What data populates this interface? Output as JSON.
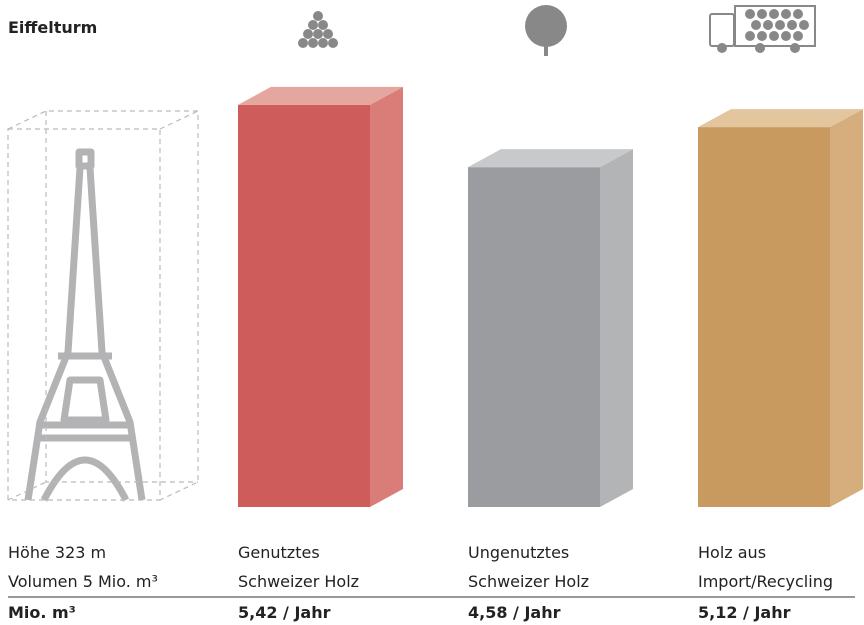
{
  "chart_data": {
    "type": "bar3d",
    "title": "Eiffelturm",
    "reference": {
      "lines": [
        "Höhe 323 m",
        "Volumen 5 Mio. m³"
      ],
      "value": 5,
      "unit": "Mio. m³"
    },
    "categories": [
      [
        "Genutztes",
        "Schweizer Holz"
      ],
      [
        "Ungenutztes",
        "Schweizer Holz"
      ],
      [
        "Holz aus",
        "Import/Recycling"
      ]
    ],
    "values": [
      5.42,
      4.58,
      5.12
    ],
    "value_labels": [
      "5,42 / Jahr",
      "4,58 / Jahr",
      "5,12 / Jahr"
    ],
    "colors": [
      {
        "front": "#cd5c5b",
        "side": "#da7d79",
        "top": "#e4a69e"
      },
      {
        "front": "#9a9c9f",
        "side": "#b3b4b6",
        "top": "#c8c9ca"
      },
      {
        "front": "#c89a5f",
        "side": "#d6ad7c",
        "top": "#e3c59e"
      }
    ]
  }
}
